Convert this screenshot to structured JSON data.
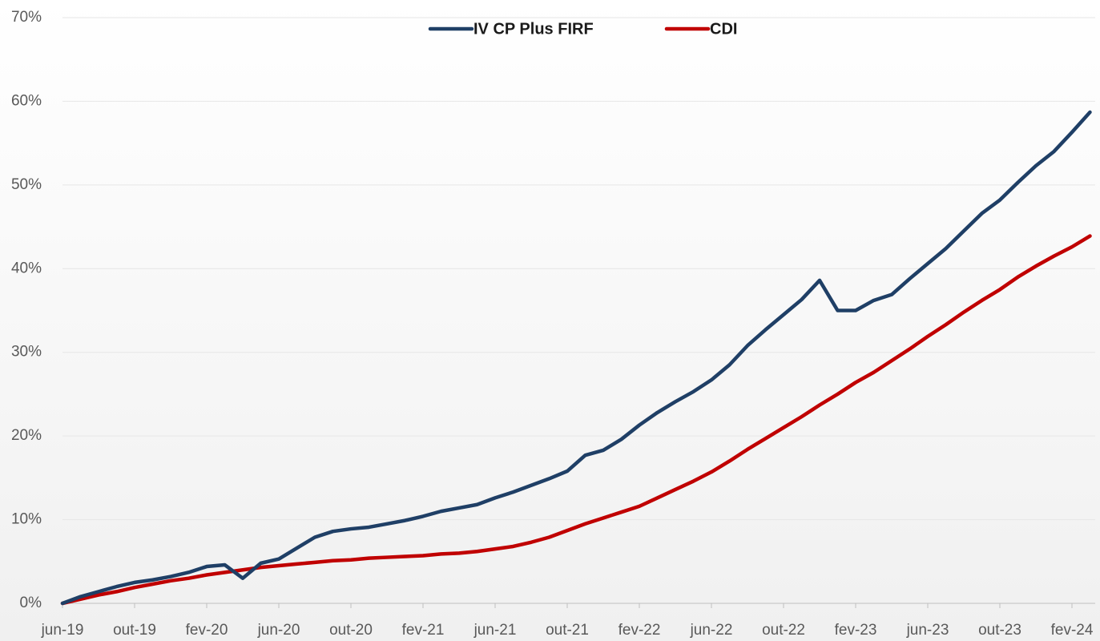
{
  "chart_data": {
    "type": "line",
    "categories": [
      "jun-19",
      null,
      null,
      null,
      "out-19",
      null,
      null,
      null,
      "fev-20",
      null,
      null,
      null,
      "jun-20",
      null,
      null,
      null,
      "out-20",
      null,
      null,
      null,
      "fev-21",
      null,
      null,
      null,
      "jun-21",
      null,
      null,
      null,
      "out-21",
      null,
      null,
      null,
      "fev-22",
      null,
      null,
      null,
      "jun-22",
      null,
      null,
      null,
      "out-22",
      null,
      null,
      null,
      "fev-23",
      null,
      null,
      null,
      "jun-23",
      null,
      null,
      null,
      "out-23",
      null,
      null,
      null,
      "fev-24",
      null
    ],
    "series": [
      {
        "name": "IV CP Plus FIRF",
        "color": "#1f3f66",
        "values": [
          0,
          0.8,
          1.4,
          2.0,
          2.5,
          2.8,
          3.2,
          3.7,
          4.4,
          4.6,
          3.0,
          4.8,
          5.3,
          6.6,
          7.9,
          8.6,
          8.9,
          9.1,
          9.5,
          9.9,
          10.4,
          11.0,
          11.4,
          11.8,
          12.6,
          13.3,
          14.1,
          14.9,
          15.8,
          17.7,
          18.3,
          19.6,
          21.3,
          22.8,
          24.1,
          25.3,
          26.7,
          28.5,
          30.8,
          32.7,
          34.5,
          36.3,
          38.6,
          35.0,
          35.0,
          36.2,
          36.9,
          38.8,
          40.6,
          42.4,
          44.5,
          46.6,
          48.2,
          50.3,
          52.3,
          54.0,
          56.3,
          58.7
        ]
      },
      {
        "name": "CDI",
        "color": "#c00000",
        "values": [
          0,
          0.5,
          1.0,
          1.4,
          1.9,
          2.3,
          2.7,
          3.0,
          3.4,
          3.7,
          4.0,
          4.3,
          4.5,
          4.7,
          4.9,
          5.1,
          5.2,
          5.4,
          5.5,
          5.6,
          5.7,
          5.9,
          6.0,
          6.2,
          6.5,
          6.8,
          7.3,
          7.9,
          8.7,
          9.5,
          10.2,
          10.9,
          11.6,
          12.6,
          13.6,
          14.6,
          15.7,
          17.0,
          18.4,
          19.7,
          21.0,
          22.3,
          23.7,
          25.0,
          26.4,
          27.6,
          29.0,
          30.4,
          31.9,
          33.3,
          34.8,
          36.2,
          37.5,
          39.0,
          40.3,
          41.5,
          42.6,
          43.9
        ]
      }
    ],
    "ylim": [
      0,
      70
    ],
    "yticks": [
      {
        "value": 0,
        "label": "0%"
      },
      {
        "value": 10,
        "label": "10%"
      },
      {
        "value": 20,
        "label": "20%"
      },
      {
        "value": 30,
        "label": "30%"
      },
      {
        "value": 40,
        "label": "40%"
      },
      {
        "value": 50,
        "label": "50%"
      },
      {
        "value": 60,
        "label": "60%"
      },
      {
        "value": 70,
        "label": "70%"
      }
    ],
    "grid": true,
    "legend": "top"
  }
}
